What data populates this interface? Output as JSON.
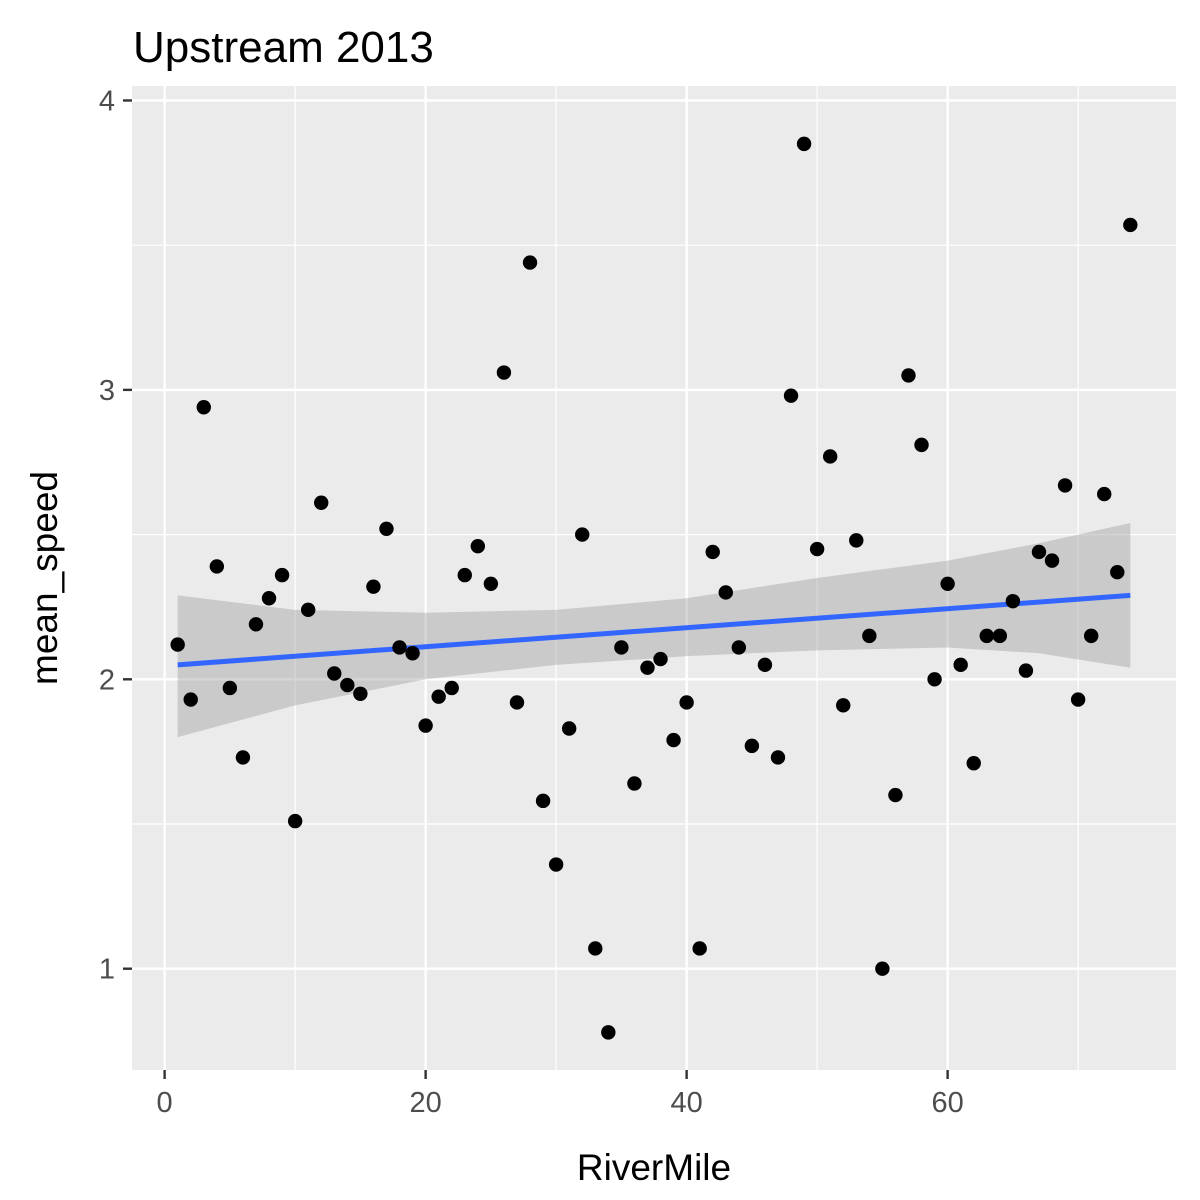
{
  "chart_data": {
    "type": "scatter",
    "title": "Upstream 2013",
    "xlabel": "RiverMile",
    "ylabel": "mean_speed",
    "xlim": [
      -2.5,
      77.5
    ],
    "ylim": [
      0.65,
      4.05
    ],
    "x_ticks": [
      0,
      20,
      40,
      60
    ],
    "x_tick_labels": [
      "0",
      "20",
      "40",
      "60"
    ],
    "y_ticks": [
      1,
      2,
      3,
      4
    ],
    "y_tick_labels": [
      "1",
      "2",
      "3",
      "4"
    ],
    "grid": true,
    "legend": "none",
    "colors": {
      "panel": "#ebebeb",
      "grid": "#ffffff",
      "points": "#000000",
      "fit_line": "#3366ff",
      "ribbon": "#999999",
      "tick": "#333333"
    },
    "points": [
      {
        "x": 1,
        "y": 2.12
      },
      {
        "x": 2,
        "y": 1.93
      },
      {
        "x": 3,
        "y": 2.94
      },
      {
        "x": 4,
        "y": 2.39
      },
      {
        "x": 5,
        "y": 1.97
      },
      {
        "x": 6,
        "y": 1.73
      },
      {
        "x": 7,
        "y": 2.19
      },
      {
        "x": 8,
        "y": 2.28
      },
      {
        "x": 9,
        "y": 2.36
      },
      {
        "x": 10,
        "y": 1.51
      },
      {
        "x": 11,
        "y": 2.24
      },
      {
        "x": 12,
        "y": 2.61
      },
      {
        "x": 13,
        "y": 2.02
      },
      {
        "x": 14,
        "y": 1.98
      },
      {
        "x": 15,
        "y": 1.95
      },
      {
        "x": 16,
        "y": 2.32
      },
      {
        "x": 17,
        "y": 2.52
      },
      {
        "x": 18,
        "y": 2.11
      },
      {
        "x": 19,
        "y": 2.09
      },
      {
        "x": 20,
        "y": 1.84
      },
      {
        "x": 21,
        "y": 1.94
      },
      {
        "x": 22,
        "y": 1.97
      },
      {
        "x": 23,
        "y": 2.36
      },
      {
        "x": 24,
        "y": 2.46
      },
      {
        "x": 25,
        "y": 2.33
      },
      {
        "x": 26,
        "y": 3.06
      },
      {
        "x": 27,
        "y": 1.92
      },
      {
        "x": 28,
        "y": 3.44
      },
      {
        "x": 29,
        "y": 1.58
      },
      {
        "x": 30,
        "y": 1.36
      },
      {
        "x": 31,
        "y": 1.83
      },
      {
        "x": 32,
        "y": 2.5
      },
      {
        "x": 33,
        "y": 1.07
      },
      {
        "x": 34,
        "y": 0.78
      },
      {
        "x": 35,
        "y": 2.11
      },
      {
        "x": 36,
        "y": 1.64
      },
      {
        "x": 37,
        "y": 2.04
      },
      {
        "x": 38,
        "y": 2.07
      },
      {
        "x": 39,
        "y": 1.79
      },
      {
        "x": 40,
        "y": 1.92
      },
      {
        "x": 41,
        "y": 1.07
      },
      {
        "x": 42,
        "y": 2.44
      },
      {
        "x": 43,
        "y": 2.3
      },
      {
        "x": 44,
        "y": 2.11
      },
      {
        "x": 45,
        "y": 1.77
      },
      {
        "x": 46,
        "y": 2.05
      },
      {
        "x": 47,
        "y": 1.73
      },
      {
        "x": 48,
        "y": 2.98
      },
      {
        "x": 49,
        "y": 3.85
      },
      {
        "x": 50,
        "y": 2.45
      },
      {
        "x": 51,
        "y": 2.77
      },
      {
        "x": 52,
        "y": 1.91
      },
      {
        "x": 53,
        "y": 2.48
      },
      {
        "x": 54,
        "y": 2.15
      },
      {
        "x": 55,
        "y": 1.0
      },
      {
        "x": 56,
        "y": 1.6
      },
      {
        "x": 57,
        "y": 3.05
      },
      {
        "x": 58,
        "y": 2.81
      },
      {
        "x": 59,
        "y": 2.0
      },
      {
        "x": 60,
        "y": 2.33
      },
      {
        "x": 61,
        "y": 2.05
      },
      {
        "x": 62,
        "y": 1.71
      },
      {
        "x": 63,
        "y": 2.15
      },
      {
        "x": 64,
        "y": 2.15
      },
      {
        "x": 65,
        "y": 2.27
      },
      {
        "x": 66,
        "y": 2.03
      },
      {
        "x": 67,
        "y": 2.44
      },
      {
        "x": 68,
        "y": 2.41
      },
      {
        "x": 69,
        "y": 2.67
      },
      {
        "x": 70,
        "y": 1.93
      },
      {
        "x": 71,
        "y": 2.15
      },
      {
        "x": 72,
        "y": 2.64
      },
      {
        "x": 73,
        "y": 2.37
      },
      {
        "x": 74,
        "y": 3.57
      }
    ],
    "fit_line": [
      {
        "x": 1,
        "y": 2.05
      },
      {
        "x": 74,
        "y": 2.29
      }
    ],
    "confidence_band": [
      {
        "x": 1,
        "lower": 1.8,
        "upper": 2.29
      },
      {
        "x": 10,
        "lower": 1.91,
        "upper": 2.24
      },
      {
        "x": 20,
        "lower": 2.0,
        "upper": 2.23
      },
      {
        "x": 30,
        "lower": 2.05,
        "upper": 2.24
      },
      {
        "x": 40,
        "lower": 2.08,
        "upper": 2.28
      },
      {
        "x": 50,
        "lower": 2.1,
        "upper": 2.35
      },
      {
        "x": 60,
        "lower": 2.11,
        "upper": 2.41
      },
      {
        "x": 67,
        "lower": 2.09,
        "upper": 2.47
      },
      {
        "x": 74,
        "lower": 2.04,
        "upper": 2.54
      }
    ]
  }
}
